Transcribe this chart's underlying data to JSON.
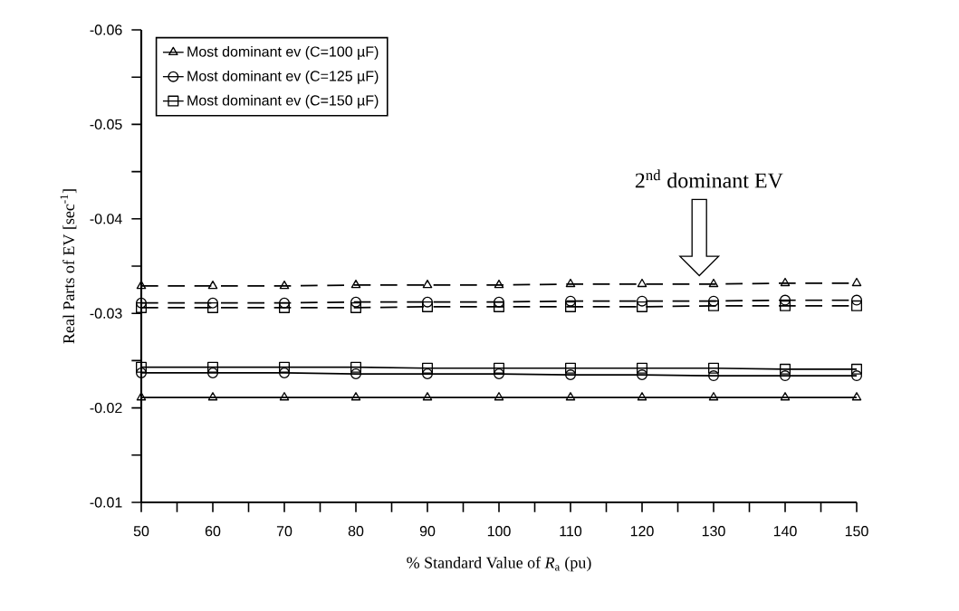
{
  "chart_data": {
    "type": "line",
    "xlabel": "% Standard Value of *R*$_{a}$ (pu)",
    "ylabel": "Real Parts of EV [sec$^{-1}$]",
    "x": [
      50,
      60,
      70,
      80,
      90,
      100,
      110,
      120,
      130,
      140,
      150
    ],
    "xlim": [
      50,
      150
    ],
    "xticks": [
      50,
      {
        "value": 55,
        "label": null
      },
      60,
      {
        "value": 65,
        "label": null
      },
      70,
      {
        "value": 75,
        "label": null
      },
      80,
      {
        "value": 85,
        "label": null
      },
      90,
      {
        "value": 95,
        "label": null
      },
      100,
      {
        "value": 105,
        "label": null
      },
      110,
      {
        "value": 115,
        "label": null
      },
      120,
      {
        "value": 125,
        "label": null
      },
      130,
      {
        "value": 135,
        "label": null
      },
      140,
      {
        "value": 145,
        "label": null
      },
      150
    ],
    "ylim": [
      -0.01,
      -0.06
    ],
    "yticks": [
      -0.06,
      {
        "value": -0.055,
        "label": null
      },
      -0.05,
      {
        "value": -0.045,
        "label": null
      },
      -0.04,
      {
        "value": -0.035,
        "label": null
      },
      -0.03,
      {
        "value": -0.025,
        "label": null
      },
      -0.02,
      {
        "value": -0.015,
        "label": null
      },
      -0.01
    ],
    "legend": "top left",
    "grid": false,
    "series": [
      {
        "name": "Most dominant ev (C=100 µF)",
        "color": "#000000",
        "marker": "triangle",
        "line_style": "solid",
        "values": [
          -0.0211,
          -0.0211,
          -0.0211,
          -0.0211,
          -0.0211,
          -0.0211,
          -0.0211,
          -0.0211,
          -0.0211,
          -0.0211,
          -0.0211
        ]
      },
      {
        "name": "Most dominant ev (C=125 µF)",
        "color": "#000000",
        "marker": "circle",
        "line_style": "solid",
        "values": [
          -0.0237,
          -0.0237,
          -0.0237,
          -0.0236,
          -0.0236,
          -0.0236,
          -0.0235,
          -0.0235,
          -0.0234,
          -0.0234,
          -0.0234
        ]
      },
      {
        "name": "Most dominant ev (C=150 µF)",
        "color": "#000000",
        "marker": "square",
        "line_style": "solid",
        "values": [
          -0.0243,
          -0.0243,
          -0.0243,
          -0.0243,
          -0.0242,
          -0.0242,
          -0.0242,
          -0.0242,
          -0.0242,
          -0.0241,
          -0.0241
        ]
      },
      {
        "color": "#000000",
        "marker": "triangle",
        "line_style": "dashed",
        "values": [
          -0.0329,
          -0.0329,
          -0.0329,
          -0.033,
          -0.033,
          -0.033,
          -0.0331,
          -0.0331,
          -0.0331,
          -0.0332,
          -0.0332
        ]
      },
      {
        "color": "#000000",
        "marker": "circle",
        "line_style": "dashed",
        "values": [
          -0.0311,
          -0.0311,
          -0.0311,
          -0.0312,
          -0.0312,
          -0.0312,
          -0.0313,
          -0.0313,
          -0.0313,
          -0.0314,
          -0.0314
        ]
      },
      {
        "color": "#000000",
        "marker": "square",
        "line_style": "dashed",
        "values": [
          -0.0306,
          -0.0306,
          -0.0306,
          -0.0306,
          -0.0307,
          -0.0307,
          -0.0307,
          -0.0307,
          -0.0308,
          -0.0308,
          -0.0308
        ]
      }
    ],
    "annotations": [
      "2$^{nd}$ dominant EV"
    ]
  }
}
